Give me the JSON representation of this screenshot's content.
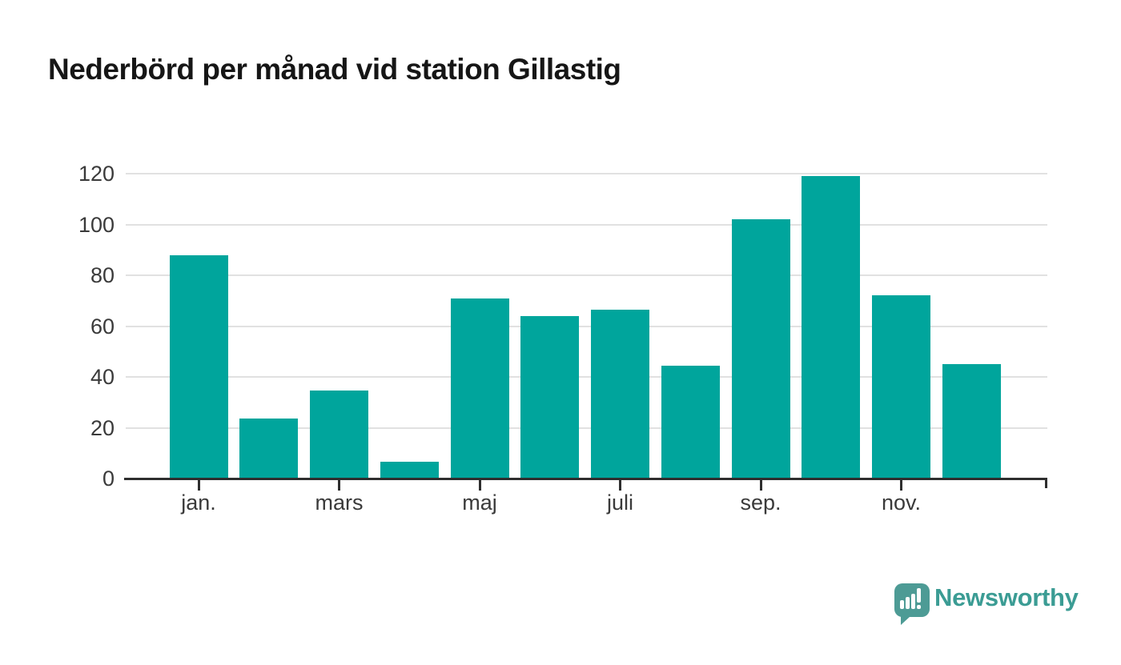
{
  "header": {
    "title": "Nederbörd per månad vid station Gillastig"
  },
  "chart_data": {
    "type": "bar",
    "title": "Nederbörd per månad vid station Gillastig",
    "categories": [
      "jan.",
      "",
      "mars",
      "",
      "maj",
      "",
      "juli",
      "",
      "sep.",
      "",
      "nov.",
      ""
    ],
    "values": [
      88,
      23.5,
      34.5,
      6.5,
      71,
      64,
      66.5,
      44.5,
      102,
      119,
      72,
      45
    ],
    "y_ticks": [
      0,
      20,
      40,
      60,
      80,
      100,
      120
    ],
    "ylim": [
      0,
      120
    ],
    "xlabel": "",
    "ylabel": "",
    "grid": "horizontal",
    "legend": "none",
    "bar_color": "#00a59c"
  },
  "branding": {
    "logo_text": "Newsworthy",
    "logo_text_color": "#3b9c94",
    "badge_color": "#4d9b95"
  },
  "colors": {
    "background": "#ffffff",
    "title": "#161616",
    "axis_label": "#3a3a3a",
    "gridline": "#e1e1e1",
    "axis_line": "#2e2e2e"
  }
}
